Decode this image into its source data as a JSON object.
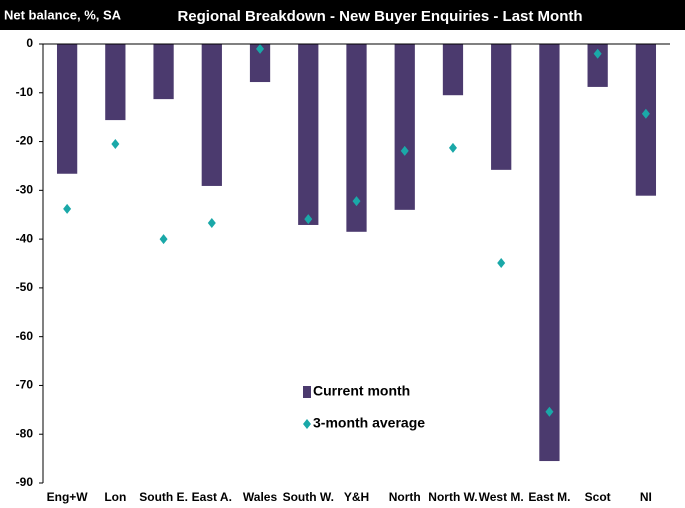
{
  "chart_data": {
    "type": "bar",
    "title": "Regional Breakdown - New Buyer Enquiries - Last Month",
    "y_label": "Net balance, %, SA",
    "categories": [
      "Eng+W",
      "Lon",
      "South E.",
      "East A.",
      "Wales",
      "South W.",
      "Y&H",
      "North",
      "North W.",
      "West M.",
      "East M.",
      "Scot",
      "NI"
    ],
    "series": [
      {
        "name": "Current month",
        "type": "bar",
        "color": "#4b3a6e",
        "values": [
          -26.6,
          -15.6,
          -11.3,
          -29.1,
          -7.8,
          -37.1,
          -38.5,
          -34.0,
          -10.5,
          -25.8,
          -85.5,
          -8.8,
          -31.1
        ]
      },
      {
        "name": "3-month average",
        "type": "scatter",
        "color": "#1aa8a8",
        "values": [
          -33.8,
          -20.5,
          -40,
          -36.7,
          -1,
          -35.9,
          -32.2,
          -21.9,
          -21.3,
          -44.9,
          -75.4,
          -2,
          -14.3
        ]
      }
    ],
    "ylim": [
      -90,
      0
    ],
    "yticks": [
      0,
      -10,
      -20,
      -30,
      -40,
      -50,
      -60,
      -70,
      -80,
      -90
    ],
    "grid": false,
    "legend": "bottom-center"
  }
}
